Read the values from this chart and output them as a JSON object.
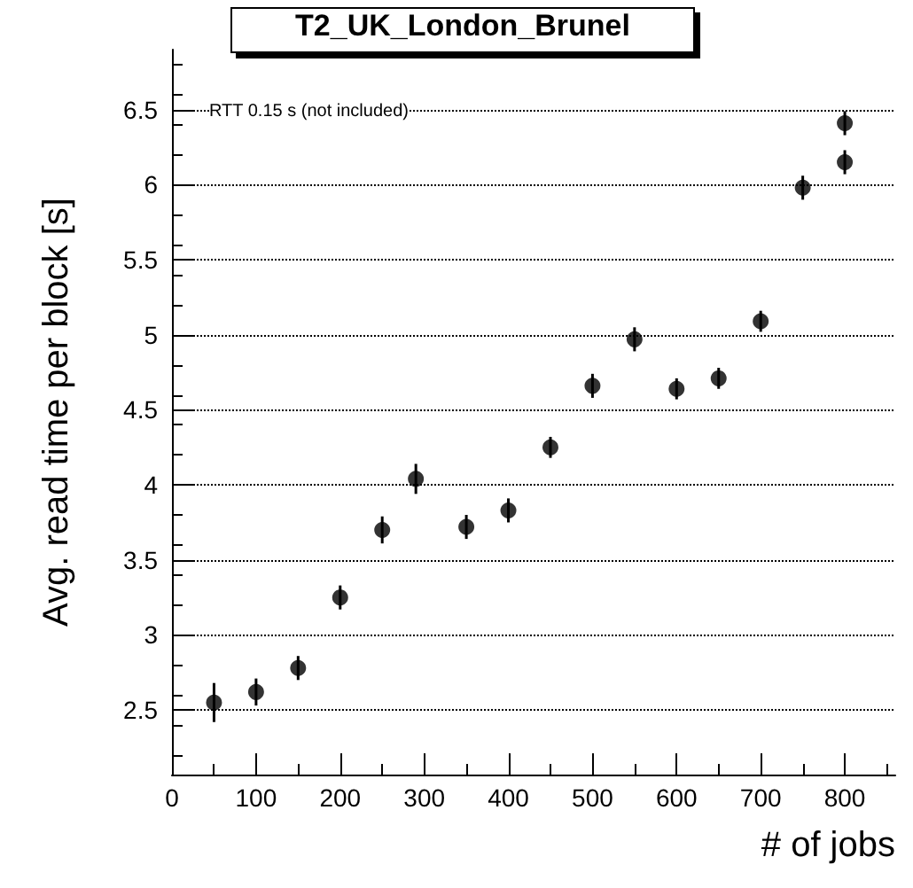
{
  "chart_data": {
    "type": "scatter",
    "title": "T2_UK_London_Brunel",
    "xlabel": "# of jobs",
    "ylabel": "Avg. read time per block [s]",
    "annotations": [
      "RTT 0.15 s (not included)"
    ],
    "x": [
      50,
      100,
      150,
      200,
      250,
      290,
      350,
      400,
      450,
      500,
      550,
      600,
      650,
      700,
      750,
      800,
      800
    ],
    "values": [
      2.55,
      2.62,
      2.78,
      3.25,
      3.7,
      4.04,
      3.72,
      3.83,
      4.25,
      4.66,
      4.97,
      4.64,
      4.71,
      5.09,
      5.98,
      6.15,
      6.41
    ],
    "errors": [
      0.13,
      0.09,
      0.08,
      0.08,
      0.09,
      0.1,
      0.08,
      0.08,
      0.07,
      0.08,
      0.08,
      0.07,
      0.07,
      0.07,
      0.08,
      0.08,
      0.08
    ],
    "color": "#000000",
    "marker": "circle",
    "xlim": [
      0,
      860
    ],
    "xticks": [
      0,
      100,
      200,
      300,
      400,
      500,
      600,
      700,
      800
    ],
    "ylim": [
      2.07,
      6.9
    ],
    "yticks": [
      2.5,
      3,
      3.5,
      4,
      4.5,
      5,
      5.5,
      6,
      6.5
    ],
    "grid": "y"
  }
}
